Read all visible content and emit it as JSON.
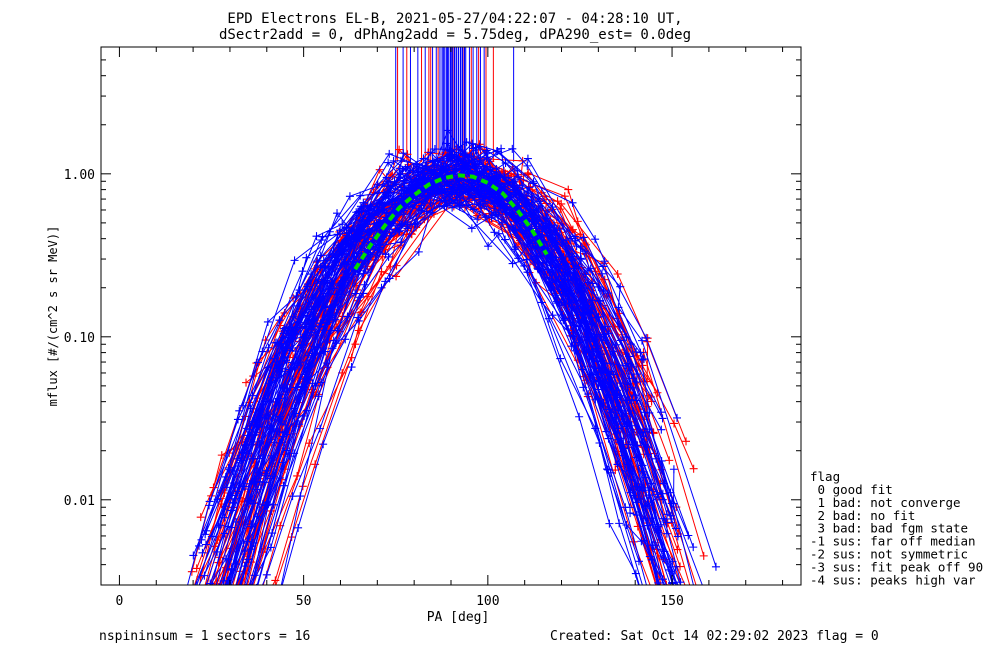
{
  "chart_data": {
    "type": "scatter",
    "title": "EPD Electrons EL-B, 2021-05-27/04:22:07 - 04:28:10 UT,",
    "subtitle": "dSectr2add = 0, dPhAng2add = 5.75deg, dPA290_est=    0.0deg",
    "xlabel": "PA [deg]",
    "ylabel": "mflux [#/(cm^2 s sr MeV)]",
    "xlim": [
      -5,
      185
    ],
    "ylim": [
      0.003,
      6
    ],
    "yscale": "log",
    "x_ticks": [
      0,
      50,
      100,
      150
    ],
    "y_ticks": [
      {
        "value": 0.01,
        "label": "0.01"
      },
      {
        "value": 0.1,
        "label": "0.10"
      },
      {
        "value": 1.0,
        "label": "1.00"
      }
    ],
    "series": [
      {
        "color": "#0000ff",
        "marker": "+",
        "lines": true,
        "curve": {
          "peak_pa": 92,
          "peak": 0.98,
          "value_at_pa_30": 0.005,
          "value_at_pa_150": 0.005
        }
      },
      {
        "color": "#ff0000",
        "marker": "+",
        "lines": true,
        "curve": {
          "peak_pa": 92,
          "peak": 0.9,
          "value_at_pa_30": 0.005,
          "value_at_pa_150": 0.006
        }
      }
    ],
    "fit_curve": {
      "color": "#00dd00",
      "style": "dashed",
      "x": [
        64,
        68,
        72,
        76,
        80,
        84,
        88,
        92,
        96,
        100,
        104,
        108,
        112,
        116
      ],
      "y": [
        0.26,
        0.36,
        0.48,
        0.62,
        0.74,
        0.86,
        0.94,
        0.98,
        0.96,
        0.88,
        0.76,
        0.6,
        0.45,
        0.32
      ]
    },
    "sector_markers": {
      "blue_x": [
        75,
        77,
        79,
        81,
        83,
        85,
        86,
        87,
        88,
        89,
        90,
        91,
        92,
        93,
        94,
        95,
        96,
        97,
        98,
        99,
        107
      ],
      "red_x": [
        75.5,
        78,
        82,
        84,
        84.5,
        86.5,
        90.5,
        93.5,
        95.5,
        97.5,
        99.5,
        101.5
      ]
    },
    "legend": {
      "title": "flag",
      "items": [
        " 0 good fit",
        " 1 bad: not converge",
        " 2 bad: no fit",
        " 3 bad: bad fgm state",
        "-1 sus: far off median",
        "-2 sus: not symmetric",
        "-3 sus: fit peak off 90",
        "-4 sus: peaks high var"
      ]
    },
    "footer": {
      "left": "nspininsum =  1  sectors = 16",
      "right": "Created: Sat Oct 14 02:29:02 2023   flag = 0"
    }
  }
}
